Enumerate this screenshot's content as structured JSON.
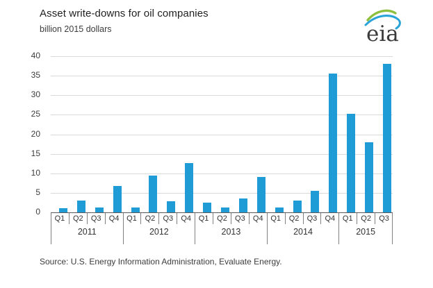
{
  "page": {
    "title": "Asset write-downs for oil companies",
    "subtitle": "billion 2015 dollars",
    "source": "Source:  U.S. Energy Information Administration, Evaluate Energy.",
    "logo_text": "eia"
  },
  "colors": {
    "bar": "#1f9cd6",
    "gridline": "#d9d9d9",
    "axis": "#595959",
    "divider": "#808080",
    "logo_green": "#8fbf3f",
    "logo_blue": "#2aa3d8"
  },
  "chart_data": {
    "type": "bar",
    "title": "Asset write-downs for oil companies",
    "ylabel": "billion 2015 dollars",
    "xlabel": "",
    "ylim": [
      0,
      40
    ],
    "ytick_step": 5,
    "grid": true,
    "legend": false,
    "years": [
      {
        "label": "2011",
        "quarters": [
          "Q1",
          "Q2",
          "Q3",
          "Q4"
        ],
        "values": [
          1.0,
          3.0,
          1.3,
          6.8
        ]
      },
      {
        "label": "2012",
        "quarters": [
          "Q1",
          "Q2",
          "Q3",
          "Q4"
        ],
        "values": [
          1.3,
          9.5,
          2.8,
          12.6
        ]
      },
      {
        "label": "2013",
        "quarters": [
          "Q1",
          "Q2",
          "Q3",
          "Q4"
        ],
        "values": [
          2.5,
          1.2,
          3.5,
          9.0
        ]
      },
      {
        "label": "2014",
        "quarters": [
          "Q1",
          "Q2",
          "Q3",
          "Q4"
        ],
        "values": [
          1.2,
          3.0,
          5.5,
          35.5
        ]
      },
      {
        "label": "2015",
        "quarters": [
          "Q1",
          "Q2",
          "Q3"
        ],
        "values": [
          25.2,
          18.0,
          38.0
        ]
      }
    ]
  }
}
